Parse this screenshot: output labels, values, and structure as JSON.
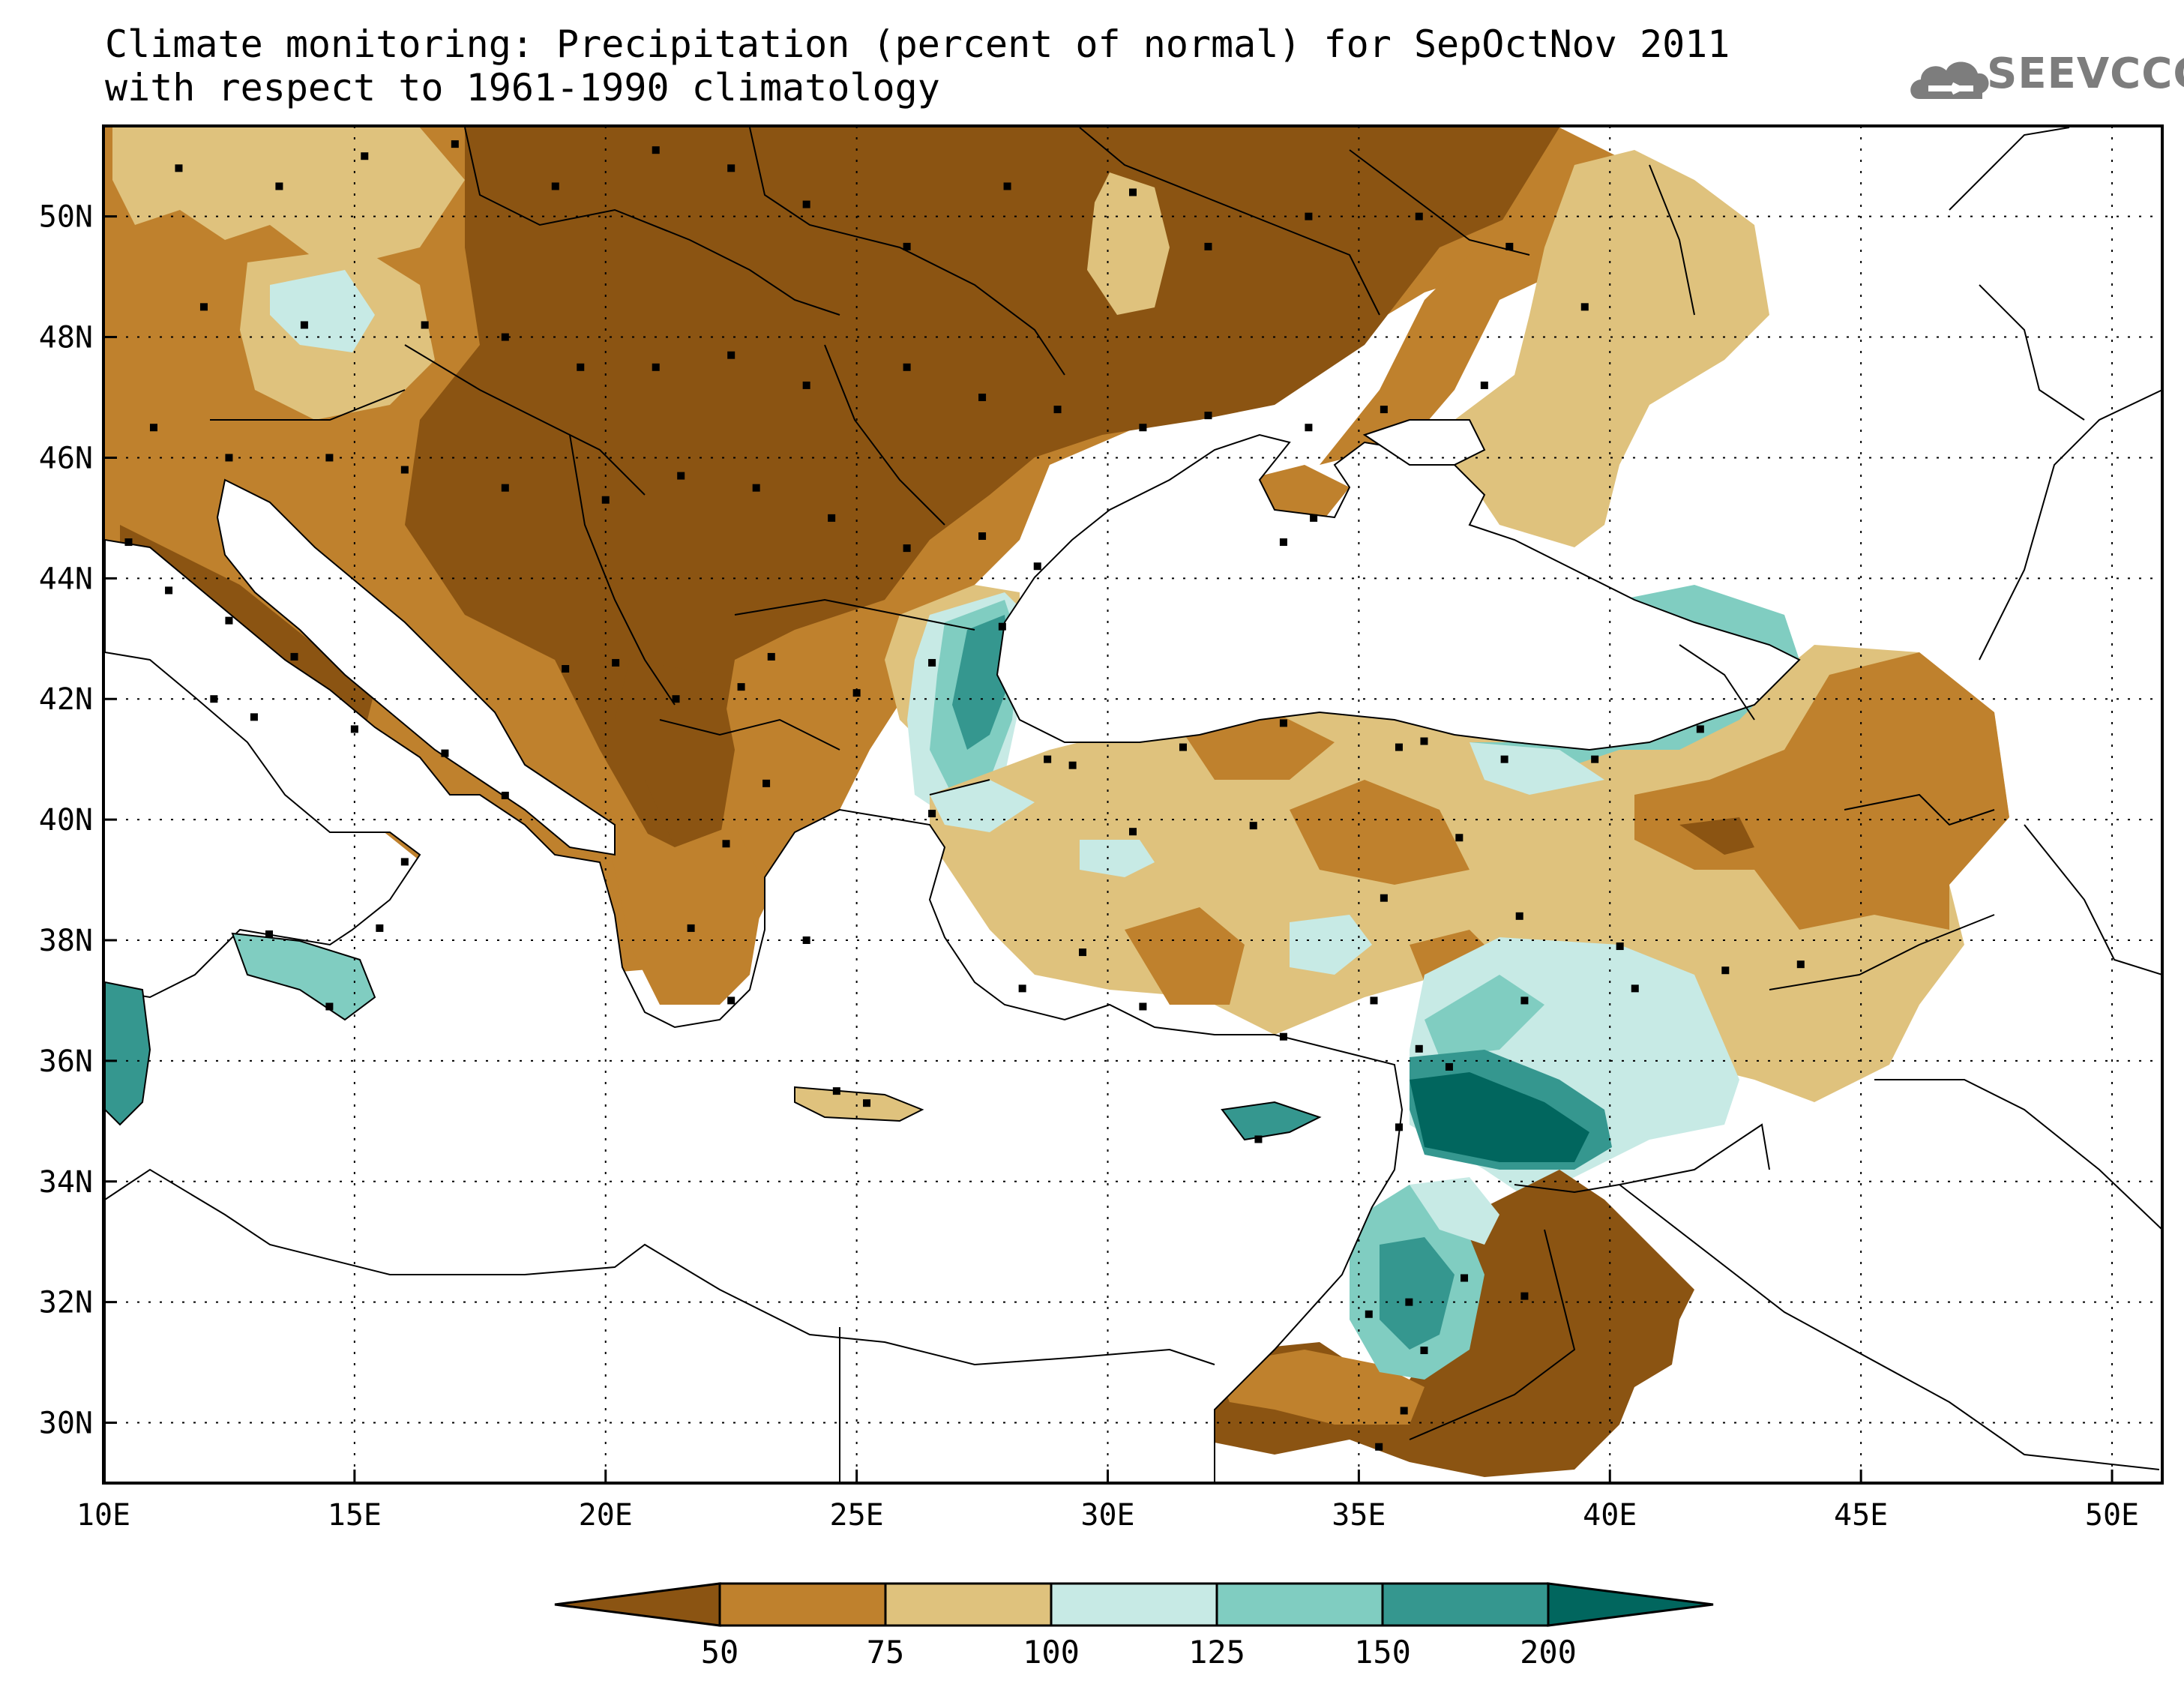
{
  "title_line1": "Climate monitoring: Precipitation (percent of normal) for SepOctNov 2011",
  "title_line2": "with respect to 1961-1990 climatology",
  "logo_text": "SEEVCCC",
  "map": {
    "lon_min": 10,
    "lon_max": 51,
    "lat_min": 29,
    "lat_max": 51.5,
    "lon_ticks": [
      {
        "value": 10,
        "label": "10E"
      },
      {
        "value": 15,
        "label": "15E"
      },
      {
        "value": 20,
        "label": "20E"
      },
      {
        "value": 25,
        "label": "25E"
      },
      {
        "value": 30,
        "label": "30E"
      },
      {
        "value": 35,
        "label": "35E"
      },
      {
        "value": 40,
        "label": "40E"
      },
      {
        "value": 45,
        "label": "45E"
      },
      {
        "value": 50,
        "label": "50E"
      }
    ],
    "lat_ticks": [
      {
        "value": 30,
        "label": "30N"
      },
      {
        "value": 32,
        "label": "32N"
      },
      {
        "value": 34,
        "label": "34N"
      },
      {
        "value": 36,
        "label": "36N"
      },
      {
        "value": 38,
        "label": "38N"
      },
      {
        "value": 40,
        "label": "40N"
      },
      {
        "value": 42,
        "label": "42N"
      },
      {
        "value": 44,
        "label": "44N"
      },
      {
        "value": 46,
        "label": "46N"
      },
      {
        "value": 48,
        "label": "48N"
      },
      {
        "value": 50,
        "label": "50N"
      }
    ]
  },
  "colorbar": {
    "classes": [
      {
        "label": "<50",
        "color": "#8b5412"
      },
      {
        "label": "50-75",
        "color": "#bf812d"
      },
      {
        "label": "75-100",
        "color": "#dfc27d"
      },
      {
        "label": "100-125",
        "color": "#c7eae5"
      },
      {
        "label": "125-150",
        "color": "#80cdc1"
      },
      {
        "label": "150-200",
        "color": "#35978f"
      },
      {
        "label": ">200",
        "color": "#01665e"
      }
    ],
    "tick_labels": [
      "50",
      "75",
      "100",
      "125",
      "150",
      "200"
    ]
  }
}
